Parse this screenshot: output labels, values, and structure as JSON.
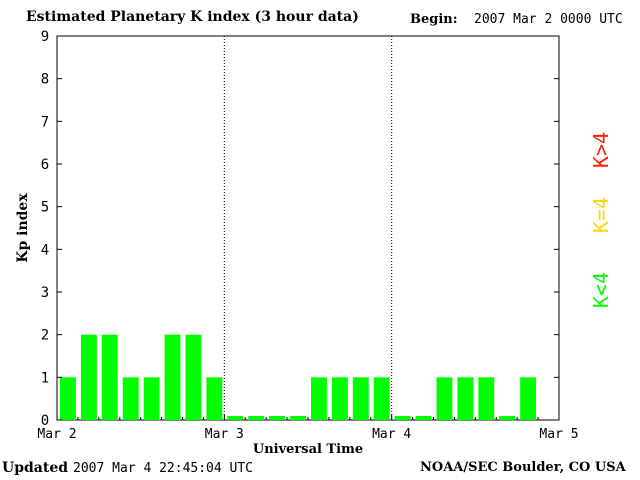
{
  "header": {
    "title": "Estimated Planetary K index (3 hour data)",
    "begin_label": "Begin:",
    "begin_value": "2007 Mar 2 0000 UTC"
  },
  "footer": {
    "updated_label": "Updated",
    "updated_value": "2007 Mar  4 22:45:04 UTC",
    "credit": "NOAA/SEC Boulder, CO USA"
  },
  "legend": {
    "high": {
      "label": "K>4",
      "color": "#ff2200"
    },
    "equal": {
      "label": "K=4",
      "color": "#ffd700"
    },
    "low": {
      "label": "K<4",
      "color": "#00ff00"
    }
  },
  "chart_data": {
    "type": "bar",
    "xlabel": "Universal Time",
    "ylabel": "Kp index",
    "ylim": [
      0,
      9
    ],
    "yticks": [
      "0",
      "1",
      "2",
      "3",
      "4",
      "5",
      "6",
      "7",
      "8",
      "9"
    ],
    "xtick_labels": [
      "Mar 2",
      "Mar 3",
      "Mar 4",
      "Mar 5"
    ],
    "bar_color": "#00ff00",
    "grid": "dotted vertical lines at day boundaries",
    "values": [
      1,
      2,
      2,
      1,
      1,
      2,
      2,
      1,
      0,
      0,
      0,
      0,
      1,
      1,
      1,
      1,
      0,
      0,
      1,
      1,
      1,
      0,
      1
    ]
  }
}
